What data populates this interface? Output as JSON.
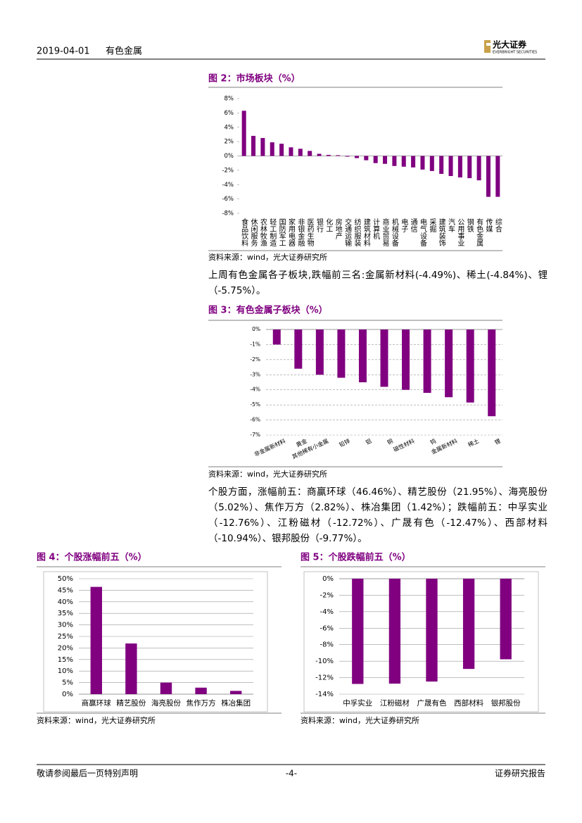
{
  "header": {
    "date": "2019-04-01",
    "topic": "有色金属",
    "logo_cn": "光大证券",
    "logo_en": "EVERBRIGHT SECURITIES"
  },
  "chart_data": [
    {
      "type": "bar",
      "title": "图 2：市场板块（%）",
      "source": "资料来源：wind，光大证券研究所",
      "categories": [
        "食品饮料",
        "休闲服务",
        "农林牧渔",
        "轻工制造",
        "国防军工",
        "家用电器",
        "非银金融",
        "医药生物",
        "银行",
        "化工",
        "房地产",
        "交通运输",
        "纺织服装",
        "建筑材料",
        "计算机",
        "商业贸易",
        "机械设备",
        "电子",
        "通信",
        "电气设备",
        "采掘",
        "建筑装饰",
        "汽车",
        "公用事业",
        "钢铁",
        "有色金属",
        "传媒",
        "综合"
      ],
      "values": [
        6.3,
        2.8,
        2.5,
        1.9,
        1.7,
        1.2,
        1.0,
        0.7,
        0.3,
        0.15,
        0.1,
        -0.1,
        -0.3,
        -0.6,
        -1.0,
        -1.1,
        -1.4,
        -1.5,
        -1.6,
        -1.9,
        -2.1,
        -2.5,
        -2.8,
        -3.0,
        -3.1,
        -3.4,
        -5.7,
        -5.7
      ],
      "color": "#800080",
      "ylim": [
        -8,
        8
      ],
      "yticks": [
        {
          "value": -8,
          "label": "-8%"
        },
        {
          "value": -6,
          "label": "-6%"
        },
        {
          "value": -4,
          "label": "-4%"
        },
        {
          "value": -2,
          "label": "-2%"
        },
        {
          "value": 0,
          "label": "0%"
        },
        {
          "value": 2,
          "label": "2%"
        },
        {
          "value": 4,
          "label": "4%"
        },
        {
          "value": 6,
          "label": "6%"
        },
        {
          "value": 8,
          "label": "8%"
        }
      ],
      "grid": false
    },
    {
      "type": "bar",
      "title": "图 3：有色金属子板块（%）",
      "source": "资料来源：wind，光大证券研究所",
      "categories": [
        "非金属新材料",
        "黄金",
        "其他稀有小金属",
        "铅锌",
        "铝",
        "铜",
        "磁性材料",
        "钨",
        "金属新材料",
        "稀土",
        "锂"
      ],
      "values": [
        -1.0,
        -2.6,
        -3.0,
        -3.2,
        -3.5,
        -3.8,
        -4.0,
        -4.2,
        -4.49,
        -4.84,
        -5.75
      ],
      "color": "#800080",
      "ylim": [
        -7,
        0
      ],
      "yticks": [
        {
          "value": -7,
          "label": "-7%"
        },
        {
          "value": -6,
          "label": "-6%"
        },
        {
          "value": -5,
          "label": "-5%"
        },
        {
          "value": -4,
          "label": "-4%"
        },
        {
          "value": -3,
          "label": "-3%"
        },
        {
          "value": -2,
          "label": "-2%"
        },
        {
          "value": -1,
          "label": "-1%"
        },
        {
          "value": 0,
          "label": "0%"
        }
      ],
      "grid": true
    },
    {
      "type": "bar",
      "title": "图 4：个股涨幅前五（%）",
      "source": "资料来源：wind，光大证券研究所",
      "categories": [
        "商赢环球",
        "精艺股份",
        "海亮股份",
        "焦作万方",
        "株冶集团"
      ],
      "values": [
        46.46,
        21.95,
        5.02,
        2.82,
        1.42
      ],
      "color": "#800080",
      "ylim": [
        0,
        50
      ],
      "yticks": [
        {
          "value": 0,
          "label": "0%"
        },
        {
          "value": 5,
          "label": "5%"
        },
        {
          "value": 10,
          "label": "10%"
        },
        {
          "value": 15,
          "label": "15%"
        },
        {
          "value": 20,
          "label": "20%"
        },
        {
          "value": 25,
          "label": "25%"
        },
        {
          "value": 30,
          "label": "30%"
        },
        {
          "value": 35,
          "label": "35%"
        },
        {
          "value": 40,
          "label": "40%"
        },
        {
          "value": 45,
          "label": "45%"
        },
        {
          "value": 50,
          "label": "50%"
        }
      ],
      "grid": true
    },
    {
      "type": "bar",
      "title": "图 5：个股跌幅前五（%）",
      "source": "资料来源：wind，光大证券研究所",
      "categories": [
        "中孚实业",
        "江粉磁材",
        "广晟有色",
        "西部材料",
        "银邦股份"
      ],
      "values": [
        -12.76,
        -12.72,
        -12.47,
        -10.94,
        -9.77
      ],
      "color": "#800080",
      "ylim": [
        -14,
        0
      ],
      "yticks": [
        {
          "value": -14,
          "label": "-14%"
        },
        {
          "value": -12,
          "label": "-12%"
        },
        {
          "value": -10,
          "label": "-10%"
        },
        {
          "value": -8,
          "label": "-8%"
        },
        {
          "value": -6,
          "label": "-6%"
        },
        {
          "value": -4,
          "label": "-4%"
        },
        {
          "value": -2,
          "label": "-2%"
        },
        {
          "value": 0,
          "label": "0%"
        }
      ],
      "grid": true
    }
  ],
  "paragraphs": [
    "上周有色金属各子板块,跌幅前三名:金属新材料(-4.49%)、稀土(-4.84%)、锂（-5.75%）。",
    "个股方面，涨幅前五：商赢环球（46.46%）、精艺股份（21.95%）、海亮股份（5.02%）、焦作万方（2.82%）、株冶集团（1.42%）；跌幅前五：中孚实业（-12.76%）、江粉磁材（-12.72%）、广晟有色（-12.47%）、西部材料（-10.94%）、银邦股份（-9.77%）。"
  ],
  "footer": {
    "left": "敬请参阅最后一页特别声明",
    "center": "-4-",
    "right": "证券研究报告"
  }
}
